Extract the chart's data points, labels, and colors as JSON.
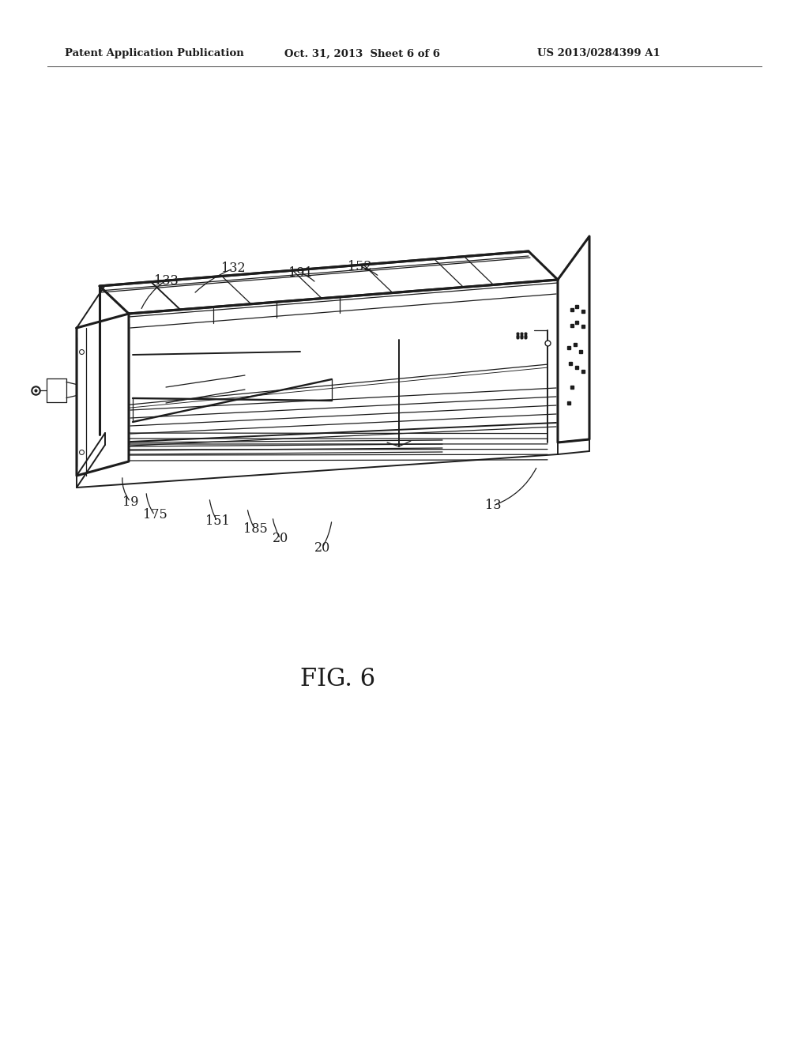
{
  "bg_color": "#ffffff",
  "header_left": "Patent Application Publication",
  "header_mid": "Oct. 31, 2013  Sheet 6 of 6",
  "header_right": "US 2013/0284399 A1",
  "fig_label": "FIG. 6",
  "col": "#1c1c1c"
}
